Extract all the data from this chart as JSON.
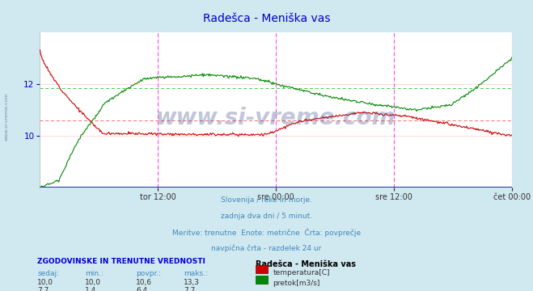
{
  "title": "Radešca - Meniška vas",
  "title_color": "#0000cc",
  "bg_color": "#d0e8f0",
  "plot_bg_color": "#ffffff",
  "xlabel_ticks": [
    "tor 12:00",
    "sre 00:00",
    "sre 12:00",
    "čet 00:00"
  ],
  "xlabel_tick_positions": [
    0.25,
    0.5,
    0.75,
    1.0
  ],
  "temp_color": "#cc0000",
  "flow_color": "#008800",
  "temp_avg_color": "#ff6666",
  "flow_avg_color": "#44cc44",
  "vline_color": "#ff44ff",
  "watermark": "www.si-vreme.com",
  "watermark_color": "#334488",
  "watermark_alpha": 0.3,
  "subtitle_lines": [
    "Slovenija / reke in morje.",
    "zadnja dva dni / 5 minut.",
    "Meritve: trenutne  Enote: metrične  Črta: povprečje",
    "navpična črta - razdelek 24 ur"
  ],
  "table_header": "ZGODOVINSKE IN TRENUTNE VREDNOSTI",
  "table_cols": [
    "sedaj:",
    "min.:",
    "povpr.:",
    "maks.:"
  ],
  "table_vals_temp": [
    "10,0",
    "10,0",
    "10,6",
    "13,3"
  ],
  "table_vals_flow": [
    "7,7",
    "1,4",
    "6,4",
    "7,7"
  ],
  "legend_title": "Radešca - Meniška vas",
  "legend_temp": "temperatura[C]",
  "legend_flow": "pretok[m3/s]",
  "temp_avg_val": 10.6,
  "flow_avg_val": 6.4,
  "ylim": [
    8,
    14
  ],
  "yticks": [
    10,
    12
  ],
  "n_points": 576
}
